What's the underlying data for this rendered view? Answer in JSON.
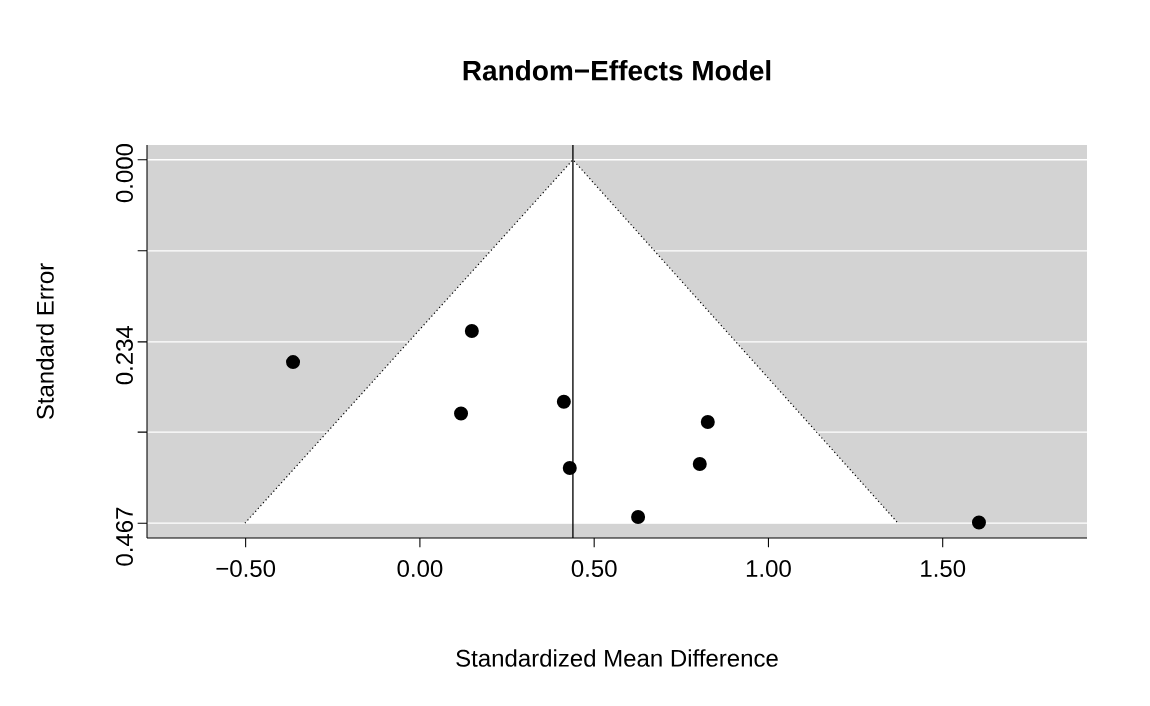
{
  "chart_data": {
    "type": "scatter",
    "title": "Random−Effects Model",
    "xlabel": "Standardized Mean Difference",
    "ylabel": "Standard Error",
    "xlim": [
      -0.783,
      1.914
    ],
    "ylim": [
      0.486,
      -0.019
    ],
    "xticks": [
      {
        "value": -0.5,
        "label": "−0.50"
      },
      {
        "value": 0,
        "label": "0.00"
      },
      {
        "value": 0.5,
        "label": "0.50"
      },
      {
        "value": 1,
        "label": "1.00"
      },
      {
        "value": 1.5,
        "label": "1.50"
      }
    ],
    "yticks": [
      {
        "value": 0,
        "label": "0.000"
      },
      {
        "value": 0.117,
        "label": null
      },
      0.234,
      {
        "value": 0.35,
        "label": null
      },
      0.467
    ],
    "grid": "y",
    "series": [
      {
        "type": "line",
        "line_style": "dotted",
        "color": "#000000",
        "x": [
          -0.502,
          0.439,
          1.372
        ],
        "values": [
          0.467,
          0,
          0.467
        ]
      },
      {
        "marker": "circle",
        "color": "#000000",
        "x": [
          -0.364,
          0.149,
          0.118,
          0.413,
          0.826,
          0.43,
          0.803,
          0.626,
          1.604
        ],
        "values": [
          0.26,
          0.22,
          0.326,
          0.311,
          0.337,
          0.396,
          0.391,
          0.459,
          0.466
        ]
      }
    ],
    "ref_lines": [
      {
        "axis": "x",
        "value": 0.439,
        "color": "#000000",
        "line_style": "solid"
      }
    ]
  }
}
